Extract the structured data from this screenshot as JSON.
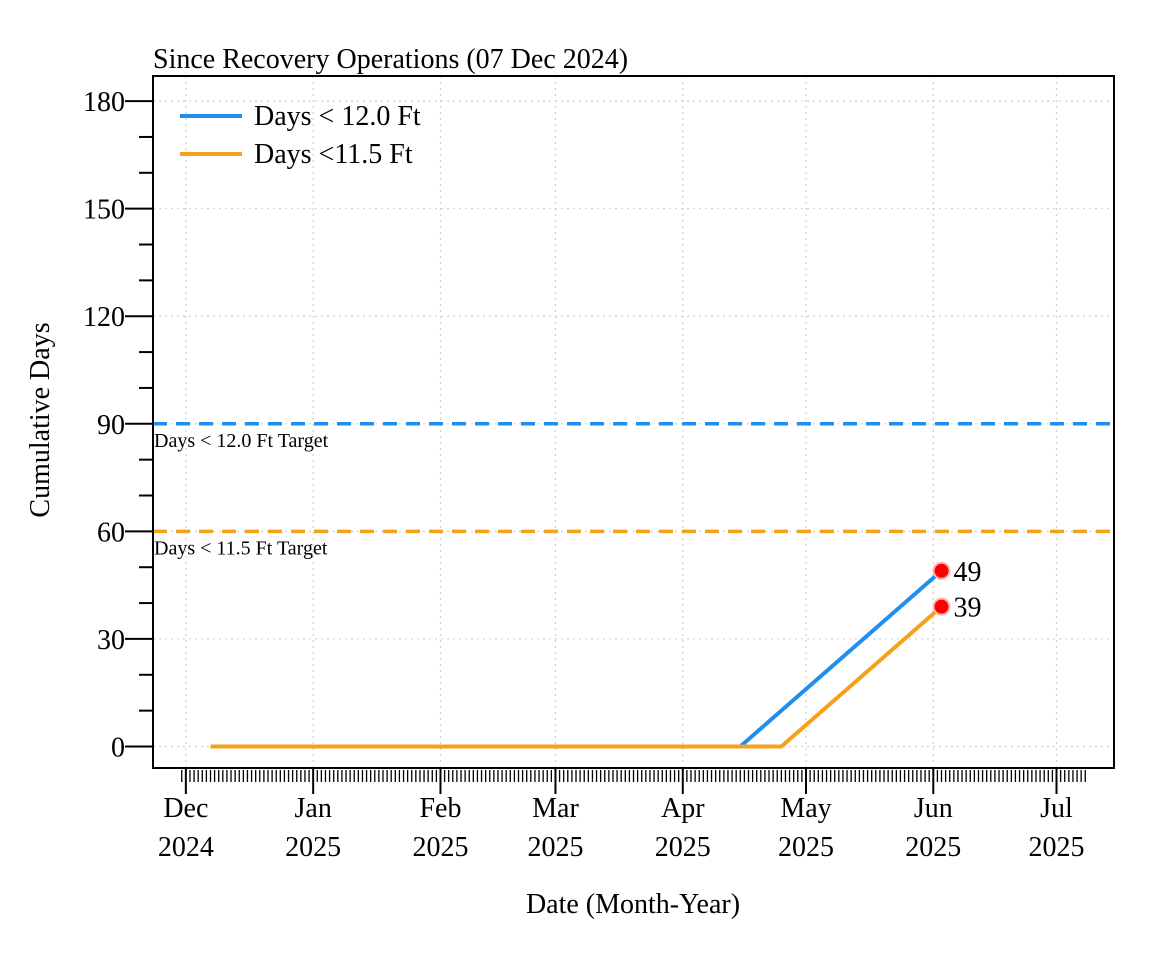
{
  "chart_data": {
    "type": "line",
    "title": "Since Recovery Operations (07 Dec 2024)",
    "xlabel": "Date (Month-Year)",
    "ylabel": "Cumulative Days",
    "x_range": [
      "2024-11-23",
      "2025-07-15"
    ],
    "ylim": [
      -6,
      187
    ],
    "y_ticks": [
      0,
      30,
      60,
      90,
      120,
      150,
      180
    ],
    "x_ticks": [
      {
        "date": "2024-12-01",
        "month": "Dec",
        "year": "2024"
      },
      {
        "date": "2025-01-01",
        "month": "Jan",
        "year": "2025"
      },
      {
        "date": "2025-02-01",
        "month": "Feb",
        "year": "2025"
      },
      {
        "date": "2025-03-01",
        "month": "Mar",
        "year": "2025"
      },
      {
        "date": "2025-04-01",
        "month": "Apr",
        "year": "2025"
      },
      {
        "date": "2025-05-01",
        "month": "May",
        "year": "2025"
      },
      {
        "date": "2025-06-01",
        "month": "Jun",
        "year": "2025"
      },
      {
        "date": "2025-07-01",
        "month": "Jul",
        "year": "2025"
      }
    ],
    "grid": true,
    "legend_position": "top-left",
    "series": [
      {
        "name": "Days < 12.0 Ft",
        "color": "#1f8fef",
        "points": [
          {
            "x": "2024-12-07",
            "y": 0
          },
          {
            "x": "2025-04-15",
            "y": 0
          },
          {
            "x": "2025-06-03",
            "y": 49
          }
        ],
        "end_label": "49"
      },
      {
        "name": "Days <11.5 Ft",
        "color": "#f5a11a",
        "points": [
          {
            "x": "2024-12-07",
            "y": 0
          },
          {
            "x": "2025-04-25",
            "y": 0
          },
          {
            "x": "2025-06-03",
            "y": 39
          }
        ],
        "end_label": "39"
      }
    ],
    "targets": [
      {
        "label": "Days < 12.0 Ft Target",
        "value": 90,
        "color": "#1f8fef"
      },
      {
        "label": "Days < 11.5 Ft Target",
        "value": 60,
        "color": "#f5a11a"
      }
    ],
    "marker_color": "#ff0000"
  }
}
